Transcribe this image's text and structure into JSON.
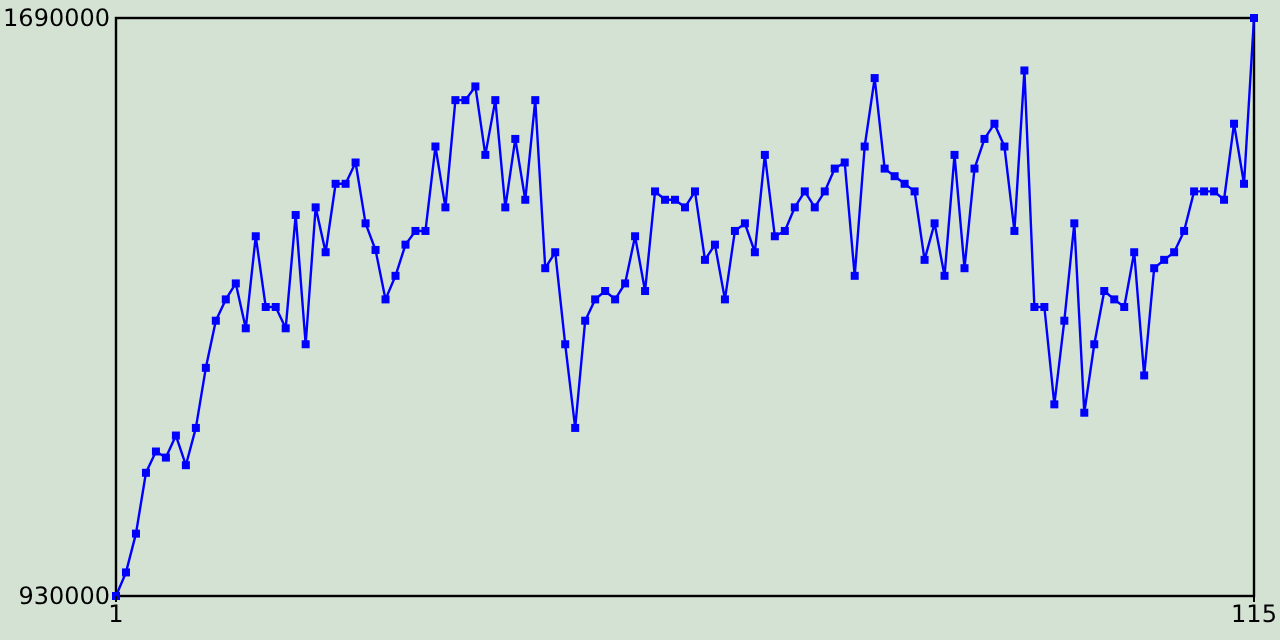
{
  "chart_data": {
    "type": "line",
    "x": [
      1,
      2,
      3,
      4,
      5,
      6,
      7,
      8,
      9,
      10,
      11,
      12,
      13,
      14,
      15,
      16,
      17,
      18,
      19,
      20,
      21,
      22,
      23,
      24,
      25,
      26,
      27,
      28,
      29,
      30,
      31,
      32,
      33,
      34,
      35,
      36,
      37,
      38,
      39,
      40,
      41,
      42,
      43,
      44,
      45,
      46,
      47,
      48,
      49,
      50,
      51,
      52,
      53,
      54,
      55,
      56,
      57,
      58,
      59,
      60,
      61,
      62,
      63,
      64,
      65,
      66,
      67,
      68,
      69,
      70,
      71,
      72,
      73,
      74,
      75,
      76,
      77,
      78,
      79,
      80,
      81,
      82,
      83,
      84,
      85,
      86,
      87,
      88,
      89,
      90,
      91,
      92,
      93,
      94,
      95,
      96,
      97,
      98,
      99,
      100,
      101,
      102,
      103,
      104,
      105,
      106,
      107,
      108,
      109,
      110,
      111,
      112,
      113,
      114,
      115
    ],
    "series": [
      {
        "color": "#0000ff",
        "values": [
          930000,
          961000,
          1012000,
          1092000,
          1120000,
          1112000,
          1141000,
          1102000,
          1151000,
          1230000,
          1292000,
          1320000,
          1341000,
          1282000,
          1403000,
          1310000,
          1310000,
          1282000,
          1431000,
          1261000,
          1441000,
          1382000,
          1472000,
          1472000,
          1500000,
          1420000,
          1385000,
          1320000,
          1351000,
          1392000,
          1410000,
          1410000,
          1521000,
          1441000,
          1582000,
          1582000,
          1600000,
          1510000,
          1582000,
          1441000,
          1531000,
          1451000,
          1582000,
          1361000,
          1382000,
          1261000,
          1151000,
          1292000,
          1320000,
          1331000,
          1320000,
          1341000,
          1403000,
          1331000,
          1462000,
          1451000,
          1451000,
          1441000,
          1462000,
          1372000,
          1392000,
          1320000,
          1410000,
          1420000,
          1382000,
          1510000,
          1403000,
          1410000,
          1441000,
          1462000,
          1441000,
          1462000,
          1492000,
          1500000,
          1351000,
          1521000,
          1611000,
          1492000,
          1482000,
          1472000,
          1462000,
          1372000,
          1420000,
          1351000,
          1510000,
          1361000,
          1492000,
          1531000,
          1551000,
          1521000,
          1410000,
          1621000,
          1310000,
          1310000,
          1182000,
          1292000,
          1420000,
          1171000,
          1261000,
          1331000,
          1320000,
          1310000,
          1382000,
          1220000,
          1361000,
          1372000,
          1382000,
          1410000,
          1462000,
          1462000,
          1462000,
          1451000,
          1551000,
          1472000,
          1690000
        ]
      }
    ],
    "xlim": [
      1,
      115
    ],
    "xticks": [
      1,
      115
    ],
    "ylim": [
      930000,
      1690000
    ],
    "yticks": [
      930000,
      1690000
    ],
    "marker": "square",
    "line_style": "solid"
  }
}
